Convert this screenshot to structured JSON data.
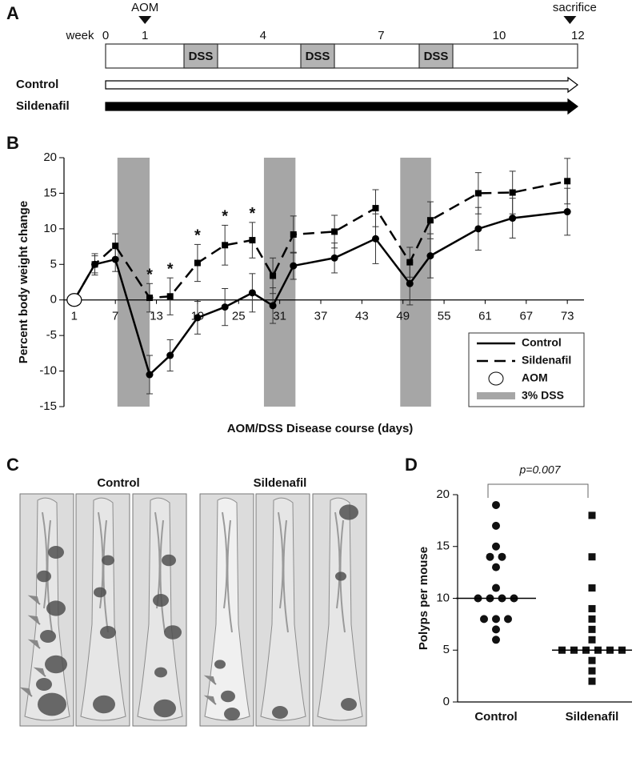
{
  "panel_labels": [
    "A",
    "B",
    "C",
    "D"
  ],
  "timeline": {
    "week_label": "week",
    "weeks": [
      0,
      1,
      4,
      7,
      10,
      12
    ],
    "start_marker": "AOM",
    "end_marker": "sacrifice",
    "dss": [
      "DSS",
      "DSS",
      "DSS"
    ],
    "groups": [
      "Control",
      "Sildenafil"
    ]
  },
  "photos": {
    "groups": [
      "Control",
      "Sildenafil"
    ]
  },
  "chart_data": [
    {
      "type": "line",
      "ylabel": "Percent body weight change",
      "xlabel": "AOM/DSS Disease course (days)",
      "x": [
        1,
        4,
        7,
        12,
        15,
        19,
        23,
        27,
        30,
        33,
        39,
        45,
        50,
        53,
        60,
        65,
        73
      ],
      "series": [
        {
          "name": "Control",
          "color": "#000000",
          "marker": "circle",
          "dash": false,
          "values": [
            0,
            5,
            5.7,
            -10.5,
            -7.8,
            -2.5,
            -1,
            1,
            -0.8,
            4.8,
            5.9,
            8.6,
            2.3,
            6.2,
            10,
            11.5,
            12.4
          ],
          "errors": [
            0,
            1.5,
            1.7,
            2.7,
            2.2,
            2.3,
            2.6,
            2.7,
            2.5,
            1.9,
            2.1,
            3.5,
            3,
            3.1,
            3,
            2.8,
            3.3
          ]
        },
        {
          "name": "Sildenafil",
          "color": "#000000",
          "marker": "square",
          "dash": true,
          "values": [
            0,
            5,
            7.6,
            0.3,
            0.5,
            5.2,
            7.7,
            8.4,
            3.4,
            9.2,
            9.6,
            12.9,
            5.3,
            11.2,
            15,
            15.1,
            16.7
          ],
          "errors": [
            0,
            1.2,
            1.7,
            2,
            2.6,
            2.6,
            2.8,
            2.5,
            2.5,
            2.6,
            2.3,
            2.6,
            2.1,
            2.6,
            2.9,
            3,
            3.2
          ],
          "point_labels": [
            null,
            null,
            null,
            "*",
            "*",
            "*",
            "*",
            "*",
            null,
            null,
            null,
            null,
            null,
            null,
            null,
            null,
            null
          ]
        }
      ],
      "start_marker": "AOM",
      "band_label": "3% DSS",
      "band_color": "#a6a6a6",
      "bands": [
        [
          7.3,
          12
        ],
        [
          28.7,
          33.3
        ],
        [
          48.6,
          53.1
        ]
      ],
      "xlim": [
        -0.5,
        74.5
      ],
      "ylim": [
        -15,
        20
      ],
      "xticks": [
        1,
        7,
        13,
        19,
        25,
        31,
        37,
        43,
        49,
        55,
        61,
        67,
        73
      ],
      "yticks": [
        -15,
        -10,
        -5,
        0,
        5,
        10,
        15,
        20
      ],
      "legend": "lower right"
    },
    {
      "type": "dot",
      "ylabel": "Polyps per mouse",
      "categories": [
        "Control",
        "Sildenafil"
      ],
      "values": [
        [
          19,
          17,
          15,
          14,
          14,
          13,
          11,
          10,
          10,
          10,
          10,
          8,
          8,
          8,
          7,
          6
        ],
        [
          18,
          14,
          11,
          9,
          8,
          7,
          6,
          5,
          5,
          5,
          5,
          5,
          5,
          4,
          3,
          2
        ]
      ],
      "medians": [
        10,
        5
      ],
      "markers": [
        "circle",
        "square"
      ],
      "color": "#111111",
      "annotation": "p=0.007",
      "ylim": [
        0,
        20
      ],
      "yticks": [
        0,
        5,
        10,
        15,
        20
      ]
    }
  ]
}
